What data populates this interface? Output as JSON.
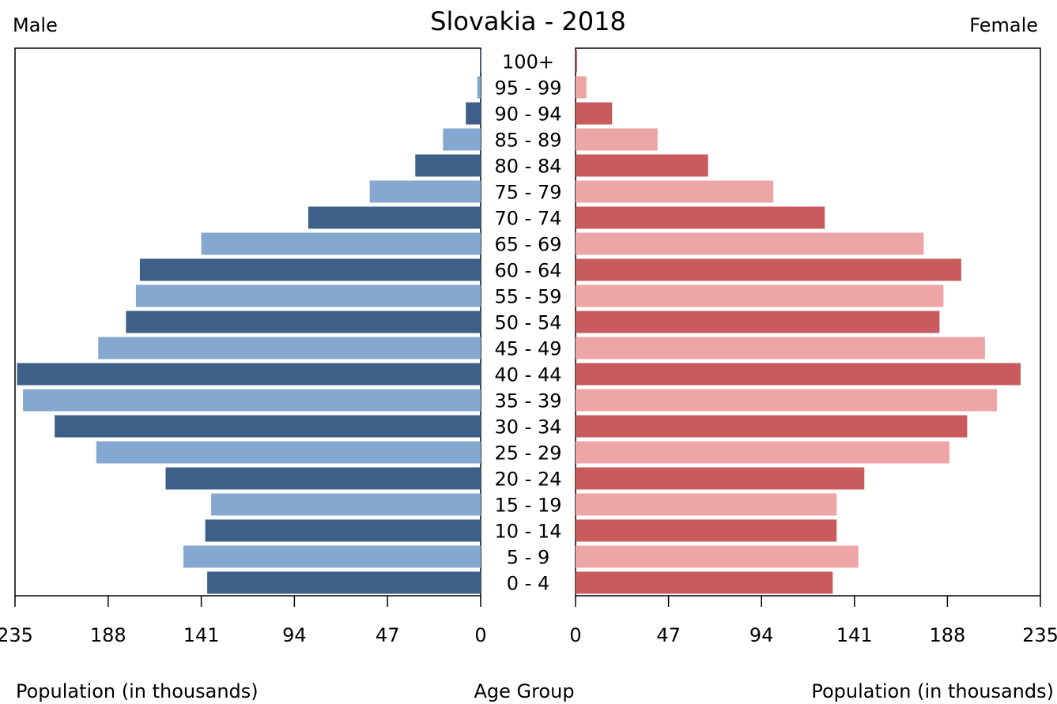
{
  "chart_data": {
    "type": "bar",
    "title": "Slovakia - 2018",
    "left_label": "Male",
    "right_label": "Female",
    "center_label": "Age Group",
    "xlabel_left": "Population (in thousands)",
    "xlabel_right": "Population (in thousands)",
    "xlim": [
      0,
      235
    ],
    "ticks": [
      0,
      47,
      94,
      141,
      188,
      235
    ],
    "categories": [
      "100+",
      "95 - 99",
      "90 - 94",
      "85 - 89",
      "80 - 84",
      "75 - 79",
      "70 - 74",
      "65 - 69",
      "60 - 64",
      "55 - 59",
      "50 - 54",
      "45 - 49",
      "40 - 44",
      "35 - 39",
      "30 - 34",
      "25 - 29",
      "20 - 24",
      "15 - 19",
      "10 - 14",
      "5 - 9",
      "0 - 4"
    ],
    "series": [
      {
        "name": "Male",
        "values": [
          0.3,
          1.7,
          7.5,
          19,
          33,
          56,
          87,
          141,
          172,
          174,
          179,
          193,
          234,
          231,
          215,
          194,
          159,
          136,
          139,
          150,
          138
        ]
      },
      {
        "name": "Female",
        "values": [
          0.8,
          5.5,
          18.5,
          41.5,
          67,
          100,
          126,
          176,
          195,
          186,
          184,
          207,
          225,
          213,
          198,
          189,
          146,
          132,
          132,
          143,
          130
        ]
      }
    ],
    "colors": {
      "male_dark": "#3e5f87",
      "male_light": "#84a8cf",
      "female_dark": "#c95b5e",
      "female_light": "#eea5a6",
      "frame": "#000000",
      "text": "#1a1a1a"
    },
    "grid": false
  }
}
